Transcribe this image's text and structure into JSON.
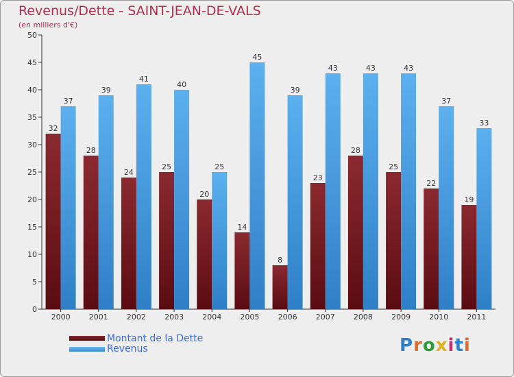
{
  "title": "Revenus/Dette - SAINT-JEAN-DE-VALS",
  "subtitle": "(en milliers d'€)",
  "logo_text": "Proxiti",
  "colors": {
    "dette": "#6e1c24",
    "revenus": "#4fa3e6",
    "title": "#b03050",
    "legend_text": "#3b6be0"
  },
  "chart_data": {
    "type": "bar",
    "categories": [
      "2000",
      "2001",
      "2002",
      "2003",
      "2004",
      "2005",
      "2006",
      "2007",
      "2008",
      "2009",
      "2010",
      "2011"
    ],
    "series": [
      {
        "name": "Montant de la Dette",
        "values": [
          32,
          28,
          24,
          25,
          20,
          14,
          8,
          23,
          28,
          25,
          22,
          19
        ]
      },
      {
        "name": "Revenus",
        "values": [
          37,
          39,
          41,
          40,
          25,
          45,
          39,
          43,
          43,
          43,
          37,
          33
        ]
      }
    ],
    "yticks": [
      0,
      5,
      10,
      15,
      20,
      25,
      30,
      35,
      40,
      45,
      50
    ],
    "ylim": [
      0,
      50
    ],
    "grid": false,
    "legend_position": "bottom-left"
  }
}
